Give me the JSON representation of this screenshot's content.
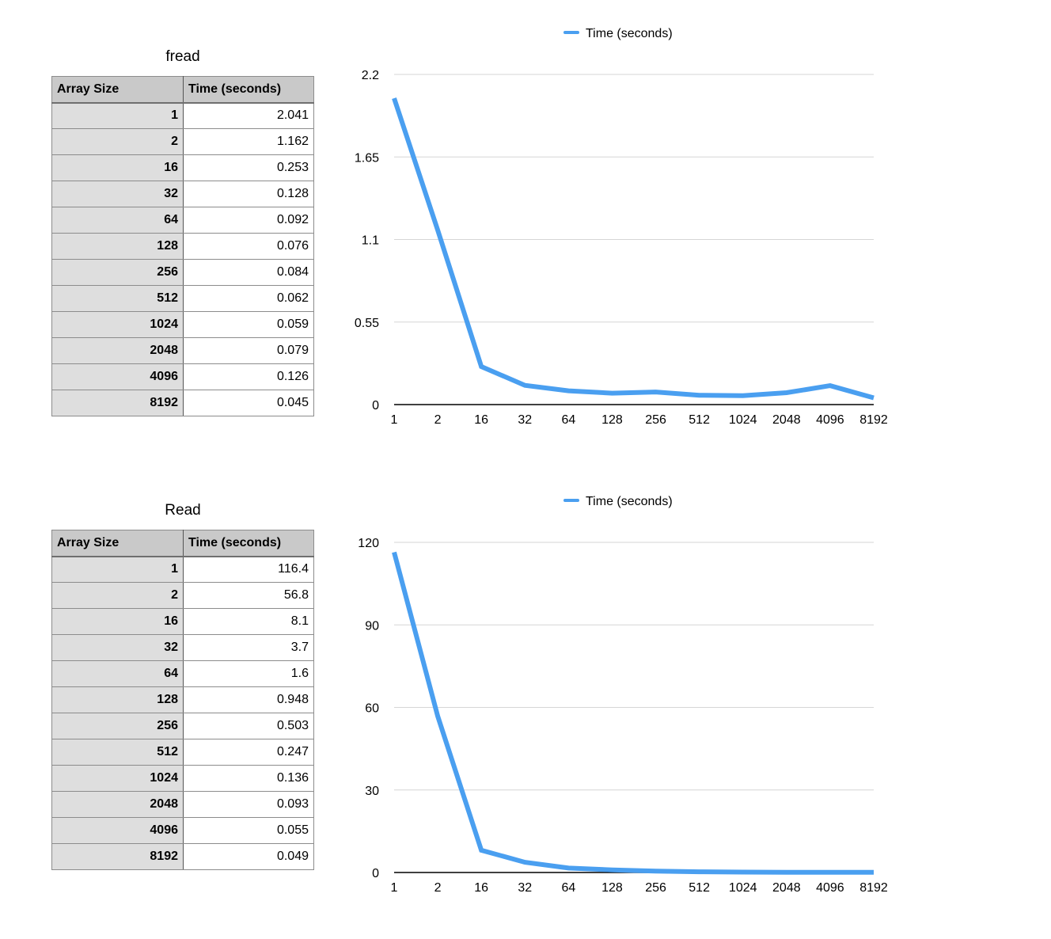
{
  "tables": [
    {
      "title": "fread",
      "headers": [
        "Array Size",
        "Time (seconds)"
      ],
      "rows": [
        [
          "1",
          "2.041"
        ],
        [
          "2",
          "1.162"
        ],
        [
          "16",
          "0.253"
        ],
        [
          "32",
          "0.128"
        ],
        [
          "64",
          "0.092"
        ],
        [
          "128",
          "0.076"
        ],
        [
          "256",
          "0.084"
        ],
        [
          "512",
          "0.062"
        ],
        [
          "1024",
          "0.059"
        ],
        [
          "2048",
          "0.079"
        ],
        [
          "4096",
          "0.126"
        ],
        [
          "8192",
          "0.045"
        ]
      ]
    },
    {
      "title": "Read",
      "headers": [
        "Array Size",
        "Time (seconds)"
      ],
      "rows": [
        [
          "1",
          "116.4"
        ],
        [
          "2",
          "56.8"
        ],
        [
          "16",
          "8.1"
        ],
        [
          "32",
          "3.7"
        ],
        [
          "64",
          "1.6"
        ],
        [
          "128",
          "0.948"
        ],
        [
          "256",
          "0.503"
        ],
        [
          "512",
          "0.247"
        ],
        [
          "1024",
          "0.136"
        ],
        [
          "2048",
          "0.093"
        ],
        [
          "4096",
          "0.055"
        ],
        [
          "8192",
          "0.049"
        ]
      ]
    }
  ],
  "chart_data": [
    {
      "type": "line",
      "categories": [
        "1",
        "2",
        "16",
        "32",
        "64",
        "128",
        "256",
        "512",
        "1024",
        "2048",
        "4096",
        "8192"
      ],
      "series": [
        {
          "name": "Time (seconds)",
          "color": "#4a9ff0",
          "values": [
            2.041,
            1.162,
            0.253,
            0.128,
            0.092,
            0.076,
            0.084,
            0.062,
            0.059,
            0.079,
            0.126,
            0.045
          ]
        }
      ],
      "yticks": [
        "0",
        "0.55",
        "1.1",
        "1.65",
        "2.2"
      ],
      "ylim": [
        0,
        2.2
      ],
      "grid": true,
      "legend": "top-center"
    },
    {
      "type": "line",
      "categories": [
        "1",
        "2",
        "16",
        "32",
        "64",
        "128",
        "256",
        "512",
        "1024",
        "2048",
        "4096",
        "8192"
      ],
      "series": [
        {
          "name": "Time (seconds)",
          "color": "#4a9ff0",
          "values": [
            116.4,
            56.8,
            8.1,
            3.7,
            1.6,
            0.948,
            0.503,
            0.247,
            0.136,
            0.093,
            0.055,
            0.049
          ]
        }
      ],
      "yticks": [
        "0",
        "30",
        "60",
        "90",
        "120"
      ],
      "ylim": [
        0,
        120
      ],
      "grid": true,
      "legend": "top-center"
    }
  ]
}
